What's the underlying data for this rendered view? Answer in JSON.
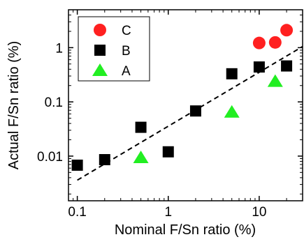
{
  "chart_data": {
    "type": "scatter",
    "xlabel": "Nominal F/Sn ratio (%)",
    "ylabel": "Actual F/Sn ratio (%)",
    "xscale": "log",
    "yscale": "log",
    "xlim": [
      0.08,
      30
    ],
    "ylim": [
      0.0015,
      5
    ],
    "grid": false,
    "legend_position": "top-left",
    "x_ticks": [
      {
        "value": 0.1,
        "label": "0.1"
      },
      {
        "value": 1,
        "label": "1"
      },
      {
        "value": 10,
        "label": "10"
      }
    ],
    "y_ticks": [
      {
        "value": 0.01,
        "label": "0.01"
      },
      {
        "value": 0.1,
        "label": "0.1"
      },
      {
        "value": 1,
        "label": "1"
      }
    ],
    "series": [
      {
        "name": "C",
        "marker": "circle",
        "color": "#ff2020",
        "points": [
          {
            "x": 10,
            "y": 1.22
          },
          {
            "x": 15,
            "y": 1.25
          },
          {
            "x": 20,
            "y": 2.1
          }
        ]
      },
      {
        "name": "B",
        "marker": "square",
        "color": "#000000",
        "points": [
          {
            "x": 0.1,
            "y": 0.0068
          },
          {
            "x": 0.2,
            "y": 0.0086
          },
          {
            "x": 0.5,
            "y": 0.034
          },
          {
            "x": 1,
            "y": 0.012
          },
          {
            "x": 2,
            "y": 0.068
          },
          {
            "x": 5,
            "y": 0.33
          },
          {
            "x": 10,
            "y": 0.44
          },
          {
            "x": 20,
            "y": 0.46
          }
        ]
      },
      {
        "name": "A",
        "marker": "triangle",
        "color": "#22ee22",
        "points": [
          {
            "x": 0.5,
            "y": 0.0094
          },
          {
            "x": 5,
            "y": 0.065
          },
          {
            "x": 15,
            "y": 0.24
          }
        ]
      }
    ],
    "fit_line": {
      "style": "dashed",
      "color": "#000000",
      "points": [
        {
          "x": 0.1,
          "y": 0.0036
        },
        {
          "x": 30,
          "y": 1.05
        }
      ]
    }
  }
}
